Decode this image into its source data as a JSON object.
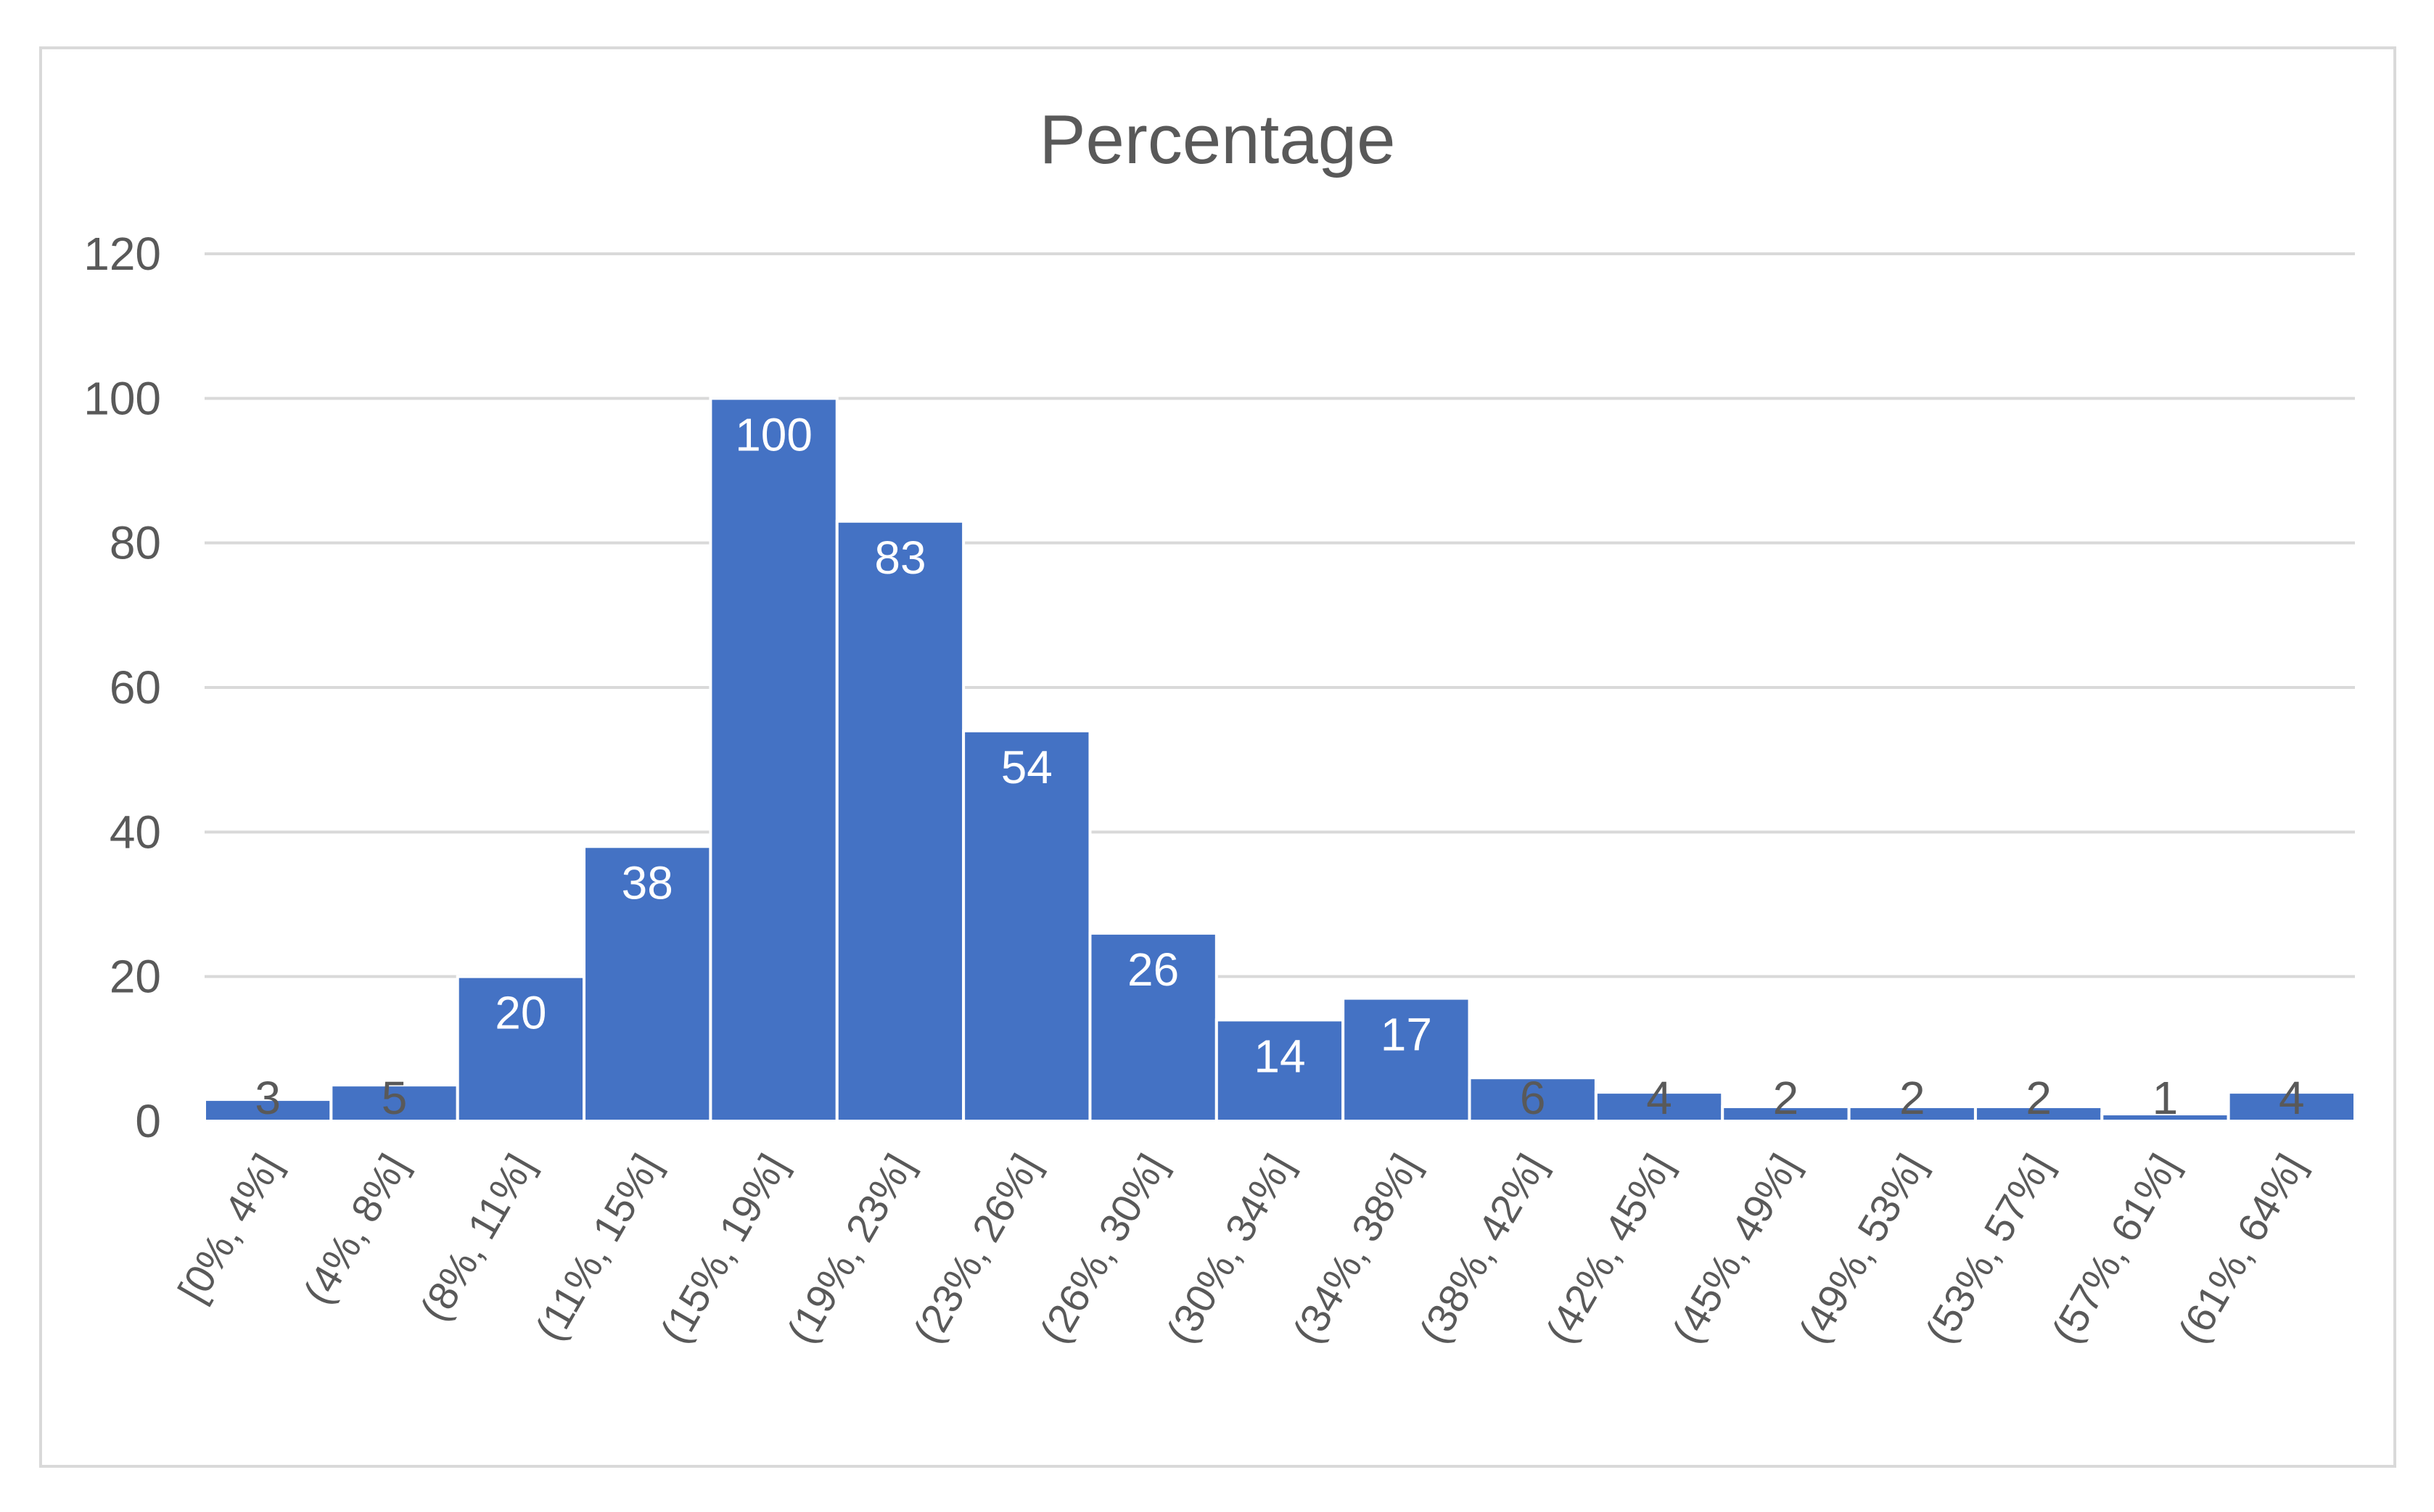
{
  "colors": {
    "bar": "#4472C4",
    "bar_outline": "#ffffff",
    "grid": "#d9d9d9",
    "text": "#595959",
    "label_inside": "#ffffff",
    "frame": "#d9d9d9"
  },
  "chart_data": {
    "type": "bar",
    "title": "Percentage",
    "xlabel": "",
    "ylabel": "",
    "ylim": [
      0,
      120
    ],
    "yticks": [
      0,
      20,
      40,
      60,
      80,
      100,
      120
    ],
    "grid": true,
    "legend": "none",
    "categories": [
      "[0%, 4%]",
      "(4%, 8%]",
      "(8%, 11%]",
      "(11%, 15%]",
      "(15%, 19%]",
      "(19%, 23%]",
      "(23%, 26%]",
      "(26%, 30%]",
      "(30%, 34%]",
      "(34%, 38%]",
      "(38%, 42%]",
      "(42%, 45%]",
      "(45%, 49%]",
      "(49%, 53%]",
      "(53%, 57%]",
      "(57%, 61%]",
      "(61%, 64%]"
    ],
    "values": [
      3,
      5,
      20,
      38,
      100,
      83,
      54,
      26,
      14,
      17,
      6,
      4,
      2,
      2,
      2,
      1,
      4
    ]
  }
}
